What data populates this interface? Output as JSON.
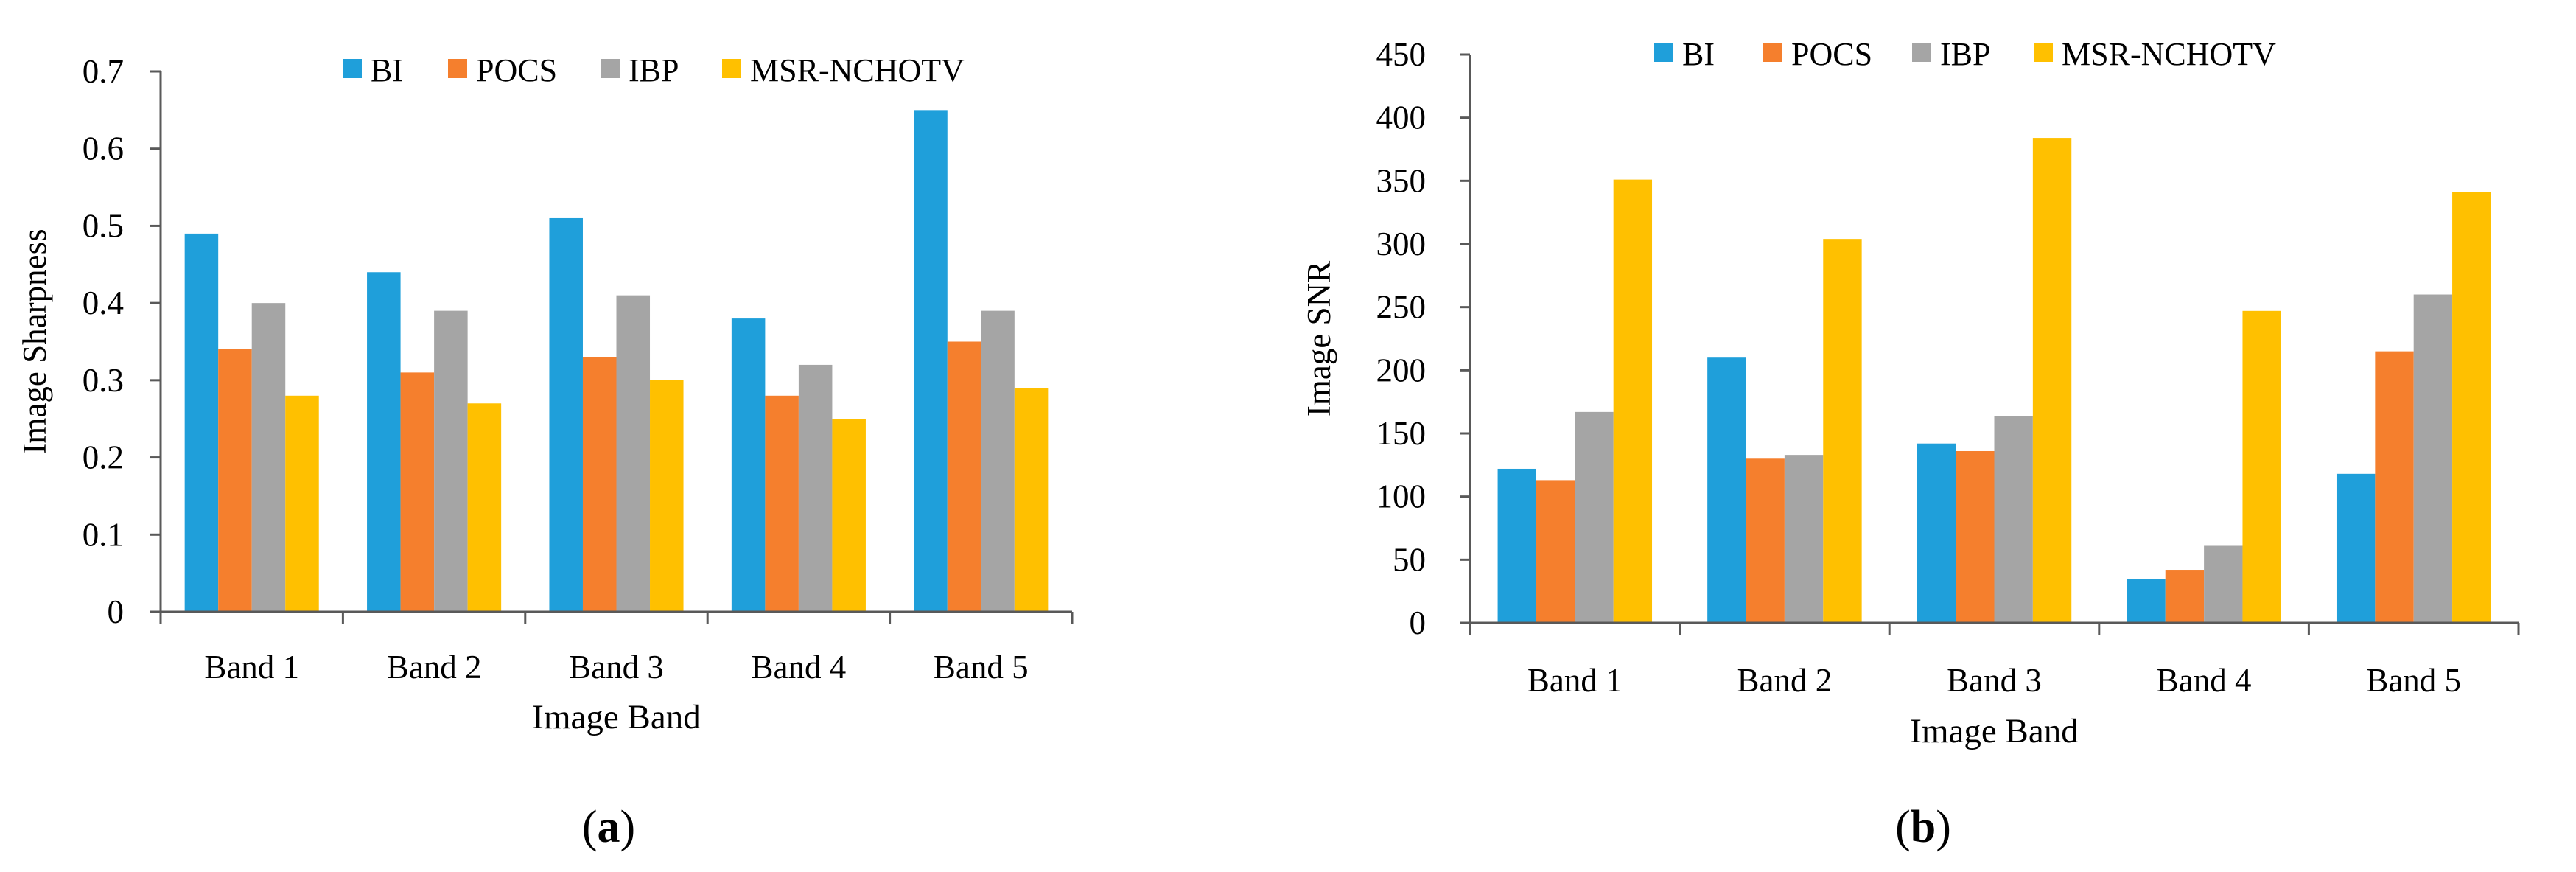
{
  "chart_data": [
    {
      "type": "bar",
      "panel_label": "a",
      "categories": [
        "Band 1",
        "Band 2",
        "Band 3",
        "Band 4",
        "Band 5"
      ],
      "series": [
        {
          "name": "BI",
          "values": [
            0.49,
            0.44,
            0.51,
            0.38,
            0.65
          ]
        },
        {
          "name": "POCS",
          "values": [
            0.34,
            0.31,
            0.33,
            0.28,
            0.35
          ]
        },
        {
          "name": "IBP",
          "values": [
            0.4,
            0.39,
            0.41,
            0.32,
            0.39
          ]
        },
        {
          "name": "MSR-NCHOTV",
          "values": [
            0.28,
            0.27,
            0.3,
            0.25,
            0.29
          ]
        }
      ],
      "xlabel": "Image Band",
      "ylabel": "Image Sharpness",
      "ylim": [
        0,
        0.7
      ],
      "yticks": [
        "0",
        "0.1",
        "0.2",
        "0.3",
        "0.4",
        "0.5",
        "0.6",
        "0.7"
      ],
      "legend_position": "top-center",
      "grid": false
    },
    {
      "type": "bar",
      "panel_label": "b",
      "categories": [
        "Band 1",
        "Band 2",
        "Band 3",
        "Band 4",
        "Band 5"
      ],
      "series": [
        {
          "name": "BI",
          "values": [
            122,
            210,
            142,
            35,
            118
          ]
        },
        {
          "name": "POCS",
          "values": [
            113,
            130,
            136,
            42,
            215
          ]
        },
        {
          "name": "IBP",
          "values": [
            167,
            133,
            164,
            61,
            260
          ]
        },
        {
          "name": "MSR-NCHOTV",
          "values": [
            351,
            304,
            384,
            247,
            341
          ]
        }
      ],
      "xlabel": "Image Band",
      "ylabel": "Image SNR",
      "ylim": [
        0,
        450
      ],
      "yticks": [
        "0",
        "50",
        "100",
        "150",
        "200",
        "250",
        "300",
        "350",
        "400",
        "450"
      ],
      "legend_position": "top-center",
      "grid": false
    }
  ],
  "colors": {
    "BI": "#1f9fda",
    "POCS": "#f57f2d",
    "IBP": "#a5a5a5",
    "MSR-NCHOTV": "#ffc000",
    "axis": "#595959"
  }
}
